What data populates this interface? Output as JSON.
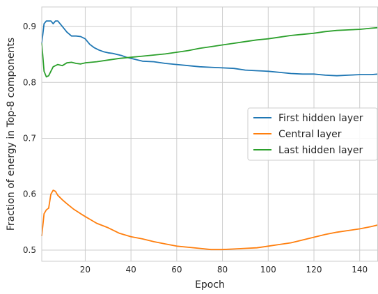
{
  "chart_data": {
    "type": "line",
    "title": "",
    "xlabel": "Epoch",
    "ylabel": "Fraction of energy in Top-8 components",
    "xlim": [
      1,
      148
    ],
    "ylim": [
      0.48,
      0.935
    ],
    "xticks": [
      20,
      40,
      60,
      80,
      100,
      120,
      140
    ],
    "yticks": [
      0.5,
      0.6,
      0.7,
      0.8,
      0.9
    ],
    "grid": true,
    "legend_position": "center-right",
    "series": [
      {
        "name": "First hidden layer",
        "color": "#1f77b4",
        "points": [
          [
            1,
            0.87
          ],
          [
            2,
            0.905
          ],
          [
            3,
            0.91
          ],
          [
            5,
            0.91
          ],
          [
            6,
            0.905
          ],
          [
            7,
            0.91
          ],
          [
            8,
            0.91
          ],
          [
            10,
            0.9
          ],
          [
            12,
            0.89
          ],
          [
            14,
            0.883
          ],
          [
            16,
            0.883
          ],
          [
            18,
            0.882
          ],
          [
            20,
            0.878
          ],
          [
            22,
            0.868
          ],
          [
            24,
            0.862
          ],
          [
            26,
            0.858
          ],
          [
            28,
            0.855
          ],
          [
            30,
            0.853
          ],
          [
            32,
            0.852
          ],
          [
            34,
            0.85
          ],
          [
            36,
            0.848
          ],
          [
            38,
            0.845
          ],
          [
            40,
            0.843
          ],
          [
            45,
            0.838
          ],
          [
            50,
            0.837
          ],
          [
            55,
            0.834
          ],
          [
            60,
            0.832
          ],
          [
            65,
            0.83
          ],
          [
            70,
            0.828
          ],
          [
            75,
            0.827
          ],
          [
            80,
            0.826
          ],
          [
            85,
            0.825
          ],
          [
            90,
            0.822
          ],
          [
            95,
            0.821
          ],
          [
            100,
            0.82
          ],
          [
            105,
            0.818
          ],
          [
            110,
            0.816
          ],
          [
            115,
            0.815
          ],
          [
            120,
            0.815
          ],
          [
            125,
            0.813
          ],
          [
            130,
            0.812
          ],
          [
            135,
            0.813
          ],
          [
            140,
            0.814
          ],
          [
            145,
            0.814
          ],
          [
            148,
            0.815
          ]
        ]
      },
      {
        "name": "Central layer",
        "color": "#ff7f0e",
        "points": [
          [
            1,
            0.525
          ],
          [
            2,
            0.565
          ],
          [
            3,
            0.572
          ],
          [
            4,
            0.575
          ],
          [
            5,
            0.6
          ],
          [
            6,
            0.607
          ],
          [
            7,
            0.605
          ],
          [
            8,
            0.598
          ],
          [
            10,
            0.59
          ],
          [
            12,
            0.583
          ],
          [
            15,
            0.573
          ],
          [
            18,
            0.565
          ],
          [
            20,
            0.56
          ],
          [
            25,
            0.548
          ],
          [
            30,
            0.54
          ],
          [
            35,
            0.53
          ],
          [
            40,
            0.524
          ],
          [
            45,
            0.52
          ],
          [
            50,
            0.515
          ],
          [
            55,
            0.511
          ],
          [
            60,
            0.507
          ],
          [
            65,
            0.505
          ],
          [
            70,
            0.503
          ],
          [
            75,
            0.501
          ],
          [
            80,
            0.501
          ],
          [
            85,
            0.502
          ],
          [
            90,
            0.503
          ],
          [
            95,
            0.504
          ],
          [
            100,
            0.507
          ],
          [
            105,
            0.51
          ],
          [
            110,
            0.513
          ],
          [
            115,
            0.518
          ],
          [
            120,
            0.523
          ],
          [
            125,
            0.528
          ],
          [
            130,
            0.532
          ],
          [
            135,
            0.535
          ],
          [
            140,
            0.538
          ],
          [
            145,
            0.542
          ],
          [
            148,
            0.545
          ]
        ]
      },
      {
        "name": "Last hidden layer",
        "color": "#2ca02c",
        "points": [
          [
            1,
            0.87
          ],
          [
            2,
            0.82
          ],
          [
            3,
            0.81
          ],
          [
            4,
            0.812
          ],
          [
            5,
            0.82
          ],
          [
            6,
            0.828
          ],
          [
            8,
            0.832
          ],
          [
            10,
            0.83
          ],
          [
            12,
            0.835
          ],
          [
            14,
            0.836
          ],
          [
            16,
            0.834
          ],
          [
            18,
            0.833
          ],
          [
            20,
            0.835
          ],
          [
            25,
            0.837
          ],
          [
            30,
            0.84
          ],
          [
            35,
            0.843
          ],
          [
            40,
            0.845
          ],
          [
            45,
            0.847
          ],
          [
            50,
            0.849
          ],
          [
            55,
            0.851
          ],
          [
            60,
            0.854
          ],
          [
            65,
            0.857
          ],
          [
            70,
            0.861
          ],
          [
            75,
            0.864
          ],
          [
            80,
            0.867
          ],
          [
            85,
            0.87
          ],
          [
            90,
            0.873
          ],
          [
            95,
            0.876
          ],
          [
            100,
            0.878
          ],
          [
            105,
            0.881
          ],
          [
            110,
            0.884
          ],
          [
            115,
            0.886
          ],
          [
            120,
            0.888
          ],
          [
            125,
            0.891
          ],
          [
            130,
            0.893
          ],
          [
            135,
            0.894
          ],
          [
            140,
            0.895
          ],
          [
            145,
            0.897
          ],
          [
            148,
            0.898
          ]
        ]
      }
    ]
  }
}
